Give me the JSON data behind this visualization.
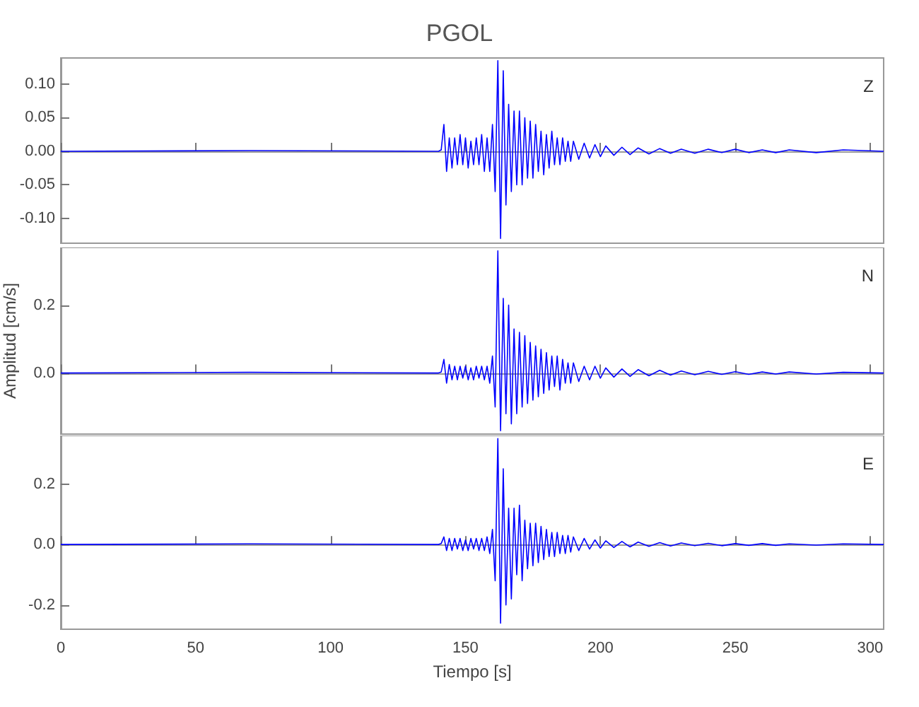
{
  "chart_data": [
    {
      "type": "line",
      "title": "PGOL",
      "annotations": [
        "Z"
      ],
      "tick_labels": "y",
      "marker": "none",
      "line_style": "solid",
      "xlim": [
        0,
        305
      ],
      "xticks": [
        0,
        50,
        100,
        150,
        200,
        250,
        300
      ],
      "ylim": [
        -0.137,
        0.139
      ],
      "yticks": [
        {
          "value": -0.1,
          "label": "-0.10"
        },
        {
          "value": -0.05,
          "label": "-0.05"
        },
        {
          "value": 0,
          "label": "0.00"
        },
        {
          "value": 0.05,
          "label": "0.05"
        },
        {
          "value": 0.1,
          "label": "0.10"
        }
      ],
      "series": [
        {
          "color": "#0000ff",
          "x": [
            0,
            70,
            140,
            141,
            142,
            143,
            144,
            145,
            146,
            147,
            148,
            149,
            150,
            151,
            152,
            153,
            154,
            155,
            156,
            157,
            158,
            159,
            160,
            161,
            162,
            163,
            164,
            165,
            166,
            167,
            168,
            169,
            170,
            171,
            172,
            173,
            174,
            175,
            176,
            177,
            178,
            179,
            180,
            181,
            182,
            183,
            184,
            185,
            186,
            187,
            188,
            189,
            190,
            192,
            194,
            196,
            198,
            200,
            202,
            205,
            208,
            211,
            214,
            218,
            222,
            226,
            230,
            235,
            240,
            245,
            250,
            255,
            260,
            265,
            270,
            280,
            290,
            305
          ],
          "values": [
            0,
            0.001,
            0,
            0.002,
            0.04,
            -0.03,
            0.02,
            -0.025,
            0.02,
            -0.02,
            0.025,
            -0.02,
            0.02,
            -0.025,
            0.015,
            -0.02,
            0.02,
            -0.02,
            0.025,
            -0.03,
            0.02,
            -0.03,
            0.04,
            -0.06,
            0.135,
            -0.13,
            0.12,
            -0.08,
            0.07,
            -0.06,
            0.06,
            -0.05,
            0.06,
            -0.05,
            0.05,
            -0.04,
            0.045,
            -0.04,
            0.04,
            -0.03,
            0.03,
            -0.035,
            0.025,
            -0.025,
            0.03,
            -0.02,
            0.02,
            -0.02,
            0.02,
            -0.015,
            0.015,
            -0.015,
            0.015,
            -0.012,
            0.012,
            -0.01,
            0.01,
            -0.008,
            0.008,
            -0.006,
            0.006,
            -0.005,
            0.005,
            -0.004,
            0.004,
            -0.003,
            0.003,
            -0.003,
            0.003,
            -0.002,
            0.003,
            -0.002,
            0.002,
            -0.002,
            0.002,
            -0.002,
            0.002,
            0
          ]
        }
      ]
    },
    {
      "type": "line",
      "ylabel": "Amplitud [cm/s]",
      "annotations": [
        "N"
      ],
      "tick_labels": "y",
      "marker": "none",
      "line_style": "solid",
      "xlim": [
        0,
        305
      ],
      "xticks": [
        0,
        50,
        100,
        150,
        200,
        250,
        300
      ],
      "ylim": [
        -0.18,
        0.37
      ],
      "yticks": [
        {
          "value": 0,
          "label": "0.0"
        },
        {
          "value": 0.2,
          "label": "0.2"
        }
      ],
      "series": [
        {
          "color": "#0000ff",
          "x": [
            0,
            70,
            140,
            141,
            142,
            143,
            144,
            145,
            146,
            147,
            148,
            149,
            150,
            151,
            152,
            153,
            154,
            155,
            156,
            157,
            158,
            159,
            160,
            161,
            162,
            163,
            164,
            165,
            166,
            167,
            168,
            169,
            170,
            171,
            172,
            173,
            174,
            175,
            176,
            177,
            178,
            179,
            180,
            181,
            182,
            183,
            184,
            185,
            186,
            187,
            188,
            189,
            190,
            192,
            194,
            196,
            198,
            200,
            202,
            205,
            208,
            211,
            214,
            218,
            222,
            226,
            230,
            235,
            240,
            245,
            250,
            255,
            260,
            265,
            270,
            280,
            290,
            305
          ],
          "values": [
            0,
            0.002,
            0,
            0.003,
            0.04,
            -0.03,
            0.025,
            -0.02,
            0.02,
            -0.02,
            0.02,
            -0.015,
            0.02,
            -0.02,
            0.015,
            -0.02,
            0.02,
            -0.015,
            0.02,
            -0.02,
            0.02,
            -0.03,
            0.05,
            -0.1,
            0.36,
            -0.17,
            0.22,
            -0.12,
            0.2,
            -0.15,
            0.13,
            -0.12,
            0.12,
            -0.1,
            0.11,
            -0.09,
            0.09,
            -0.08,
            0.08,
            -0.07,
            0.07,
            -0.06,
            0.06,
            -0.05,
            0.05,
            -0.04,
            0.05,
            -0.05,
            0.04,
            -0.03,
            0.03,
            -0.03,
            0.03,
            -0.025,
            0.02,
            -0.02,
            0.02,
            -0.015,
            0.015,
            -0.012,
            0.012,
            -0.01,
            0.01,
            -0.008,
            0.008,
            -0.006,
            0.006,
            -0.005,
            0.005,
            -0.004,
            0.004,
            -0.004,
            0.003,
            -0.003,
            0.003,
            -0.003,
            0.002,
            0
          ]
        }
      ]
    },
    {
      "type": "line",
      "xlabel": "Tiempo [s]",
      "annotations": [
        "E"
      ],
      "marker": "none",
      "line_style": "solid",
      "xlim": [
        0,
        305
      ],
      "xticks": [
        0,
        50,
        100,
        150,
        200,
        250,
        300
      ],
      "ylim": [
        -0.28,
        0.36
      ],
      "yticks": [
        {
          "value": -0.2,
          "label": "-0.2"
        },
        {
          "value": 0,
          "label": "0.0"
        },
        {
          "value": 0.2,
          "label": "0.2"
        }
      ],
      "series": [
        {
          "color": "#0000ff",
          "x": [
            0,
            70,
            140,
            141,
            142,
            143,
            144,
            145,
            146,
            147,
            148,
            149,
            150,
            151,
            152,
            153,
            154,
            155,
            156,
            157,
            158,
            159,
            160,
            161,
            162,
            163,
            164,
            165,
            166,
            167,
            168,
            169,
            170,
            171,
            172,
            173,
            174,
            175,
            176,
            177,
            178,
            179,
            180,
            181,
            182,
            183,
            184,
            185,
            186,
            187,
            188,
            189,
            190,
            192,
            194,
            196,
            198,
            200,
            202,
            205,
            208,
            211,
            214,
            218,
            222,
            226,
            230,
            235,
            240,
            245,
            250,
            255,
            260,
            265,
            270,
            280,
            290,
            305
          ],
          "values": [
            0,
            0.002,
            0,
            0.003,
            0.025,
            -0.02,
            0.02,
            -0.02,
            0.02,
            -0.015,
            0.02,
            -0.02,
            0.015,
            -0.02,
            0.02,
            -0.015,
            0.02,
            -0.02,
            0.02,
            -0.02,
            0.025,
            -0.03,
            0.05,
            -0.12,
            0.35,
            -0.26,
            0.25,
            -0.2,
            0.12,
            -0.18,
            0.12,
            -0.1,
            0.13,
            -0.12,
            0.08,
            -0.08,
            0.07,
            -0.07,
            0.07,
            -0.06,
            0.06,
            -0.05,
            0.05,
            -0.04,
            0.04,
            -0.04,
            0.04,
            -0.03,
            0.03,
            -0.03,
            0.03,
            -0.025,
            0.025,
            -0.02,
            0.02,
            -0.015,
            0.015,
            -0.012,
            0.012,
            -0.01,
            0.01,
            -0.008,
            0.008,
            -0.006,
            0.006,
            -0.005,
            0.005,
            -0.004,
            0.004,
            -0.004,
            0.003,
            -0.003,
            0.003,
            -0.003,
            0.002,
            -0.002,
            0.002,
            0
          ]
        }
      ]
    }
  ]
}
